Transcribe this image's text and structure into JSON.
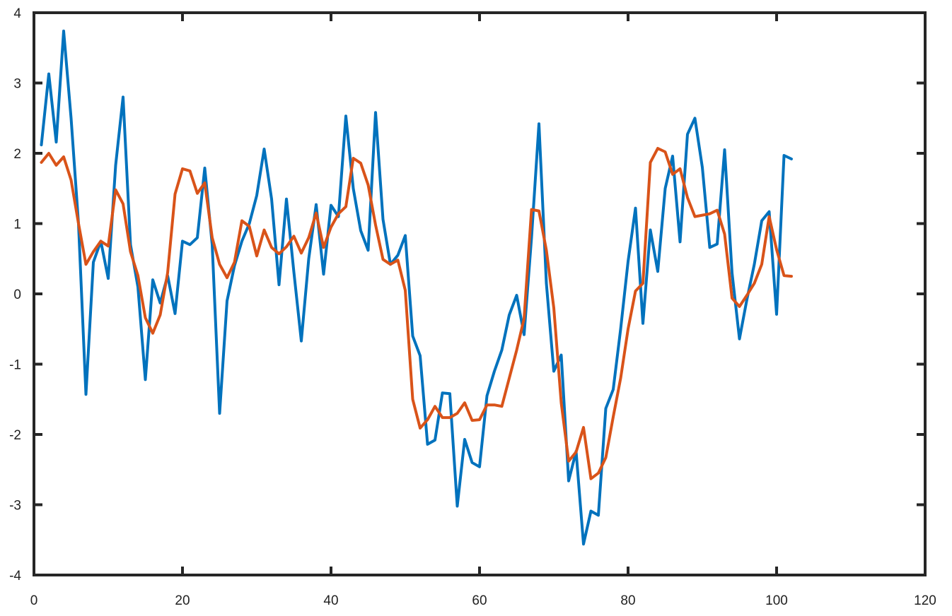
{
  "chart_data": {
    "type": "line",
    "title": "",
    "xlabel": "",
    "ylabel": "",
    "xlim": [
      0,
      120
    ],
    "ylim": [
      -4,
      4
    ],
    "xticks": [
      0,
      20,
      40,
      60,
      80,
      100,
      120
    ],
    "yticks": [
      -4,
      -3,
      -2,
      -1,
      0,
      1,
      2,
      3,
      4
    ],
    "grid": false,
    "legend": "none",
    "series": [
      {
        "color": "#0072BD",
        "x": [
          1,
          2,
          3,
          4,
          5,
          6,
          7,
          8,
          9,
          10,
          11,
          12,
          13,
          14,
          15,
          16,
          17,
          18,
          19,
          20,
          21,
          22,
          23,
          24,
          25,
          26,
          27,
          28,
          29,
          30,
          31,
          32,
          33,
          34,
          35,
          36,
          37,
          38,
          39,
          40,
          41,
          42,
          43,
          44,
          45,
          46,
          47,
          48,
          49,
          50,
          51,
          52,
          53,
          54,
          55,
          56,
          57,
          58,
          59,
          60,
          61,
          62,
          63,
          64,
          65,
          66,
          67,
          68,
          69,
          70,
          71,
          72,
          73,
          74,
          75,
          76,
          77,
          78,
          79,
          80,
          81,
          82,
          83,
          84,
          85,
          86,
          87,
          88,
          89,
          90,
          91,
          92,
          93,
          94,
          95,
          96,
          97,
          98,
          99,
          100,
          101,
          102
        ],
        "y": [
          2.12,
          3.13,
          2.16,
          3.74,
          2.5,
          1.0,
          -1.43,
          0.45,
          0.75,
          0.22,
          1.83,
          2.8,
          0.7,
          0.1,
          -1.22,
          0.2,
          -0.13,
          0.26,
          -0.28,
          0.75,
          0.7,
          0.8,
          1.79,
          0.7,
          -1.7,
          -0.1,
          0.4,
          0.75,
          1.0,
          1.4,
          2.06,
          1.35,
          0.13,
          1.35,
          0.31,
          -0.67,
          0.5,
          1.27,
          0.28,
          1.26,
          1.1,
          2.53,
          1.5,
          0.9,
          0.62,
          2.58,
          1.06,
          0.42,
          0.55,
          0.83,
          -0.6,
          -0.88,
          -2.14,
          -2.08,
          -1.41,
          -1.42,
          -3.02,
          -2.07,
          -2.4,
          -2.46,
          -1.45,
          -1.1,
          -0.8,
          -0.3,
          -0.02,
          -0.58,
          0.8,
          2.42,
          0.15,
          -1.1,
          -0.87,
          -2.66,
          -2.24,
          -3.56,
          -3.09,
          -3.15,
          -1.63,
          -1.36,
          -0.5,
          0.46,
          1.22,
          -0.42,
          0.91,
          0.32,
          1.5,
          1.96,
          0.74,
          2.27,
          2.5,
          1.8,
          0.66,
          0.71,
          2.05,
          0.3,
          -0.64,
          -0.08,
          0.42,
          1.04,
          1.17,
          -0.29,
          1.97,
          1.92
        ]
      },
      {
        "color": "#D95319",
        "x": [
          1,
          2,
          3,
          4,
          5,
          6,
          7,
          8,
          9,
          10,
          11,
          12,
          13,
          14,
          15,
          16,
          17,
          18,
          19,
          20,
          21,
          22,
          23,
          24,
          25,
          26,
          27,
          28,
          29,
          30,
          31,
          32,
          33,
          34,
          35,
          36,
          37,
          38,
          39,
          40,
          41,
          42,
          43,
          44,
          45,
          46,
          47,
          48,
          49,
          50,
          51,
          52,
          53,
          54,
          55,
          56,
          57,
          58,
          59,
          60,
          61,
          62,
          63,
          64,
          65,
          66,
          67,
          68,
          69,
          70,
          71,
          72,
          73,
          74,
          75,
          76,
          77,
          78,
          79,
          80,
          81,
          82,
          83,
          84,
          85,
          86,
          87,
          88,
          89,
          90,
          91,
          92,
          93,
          94,
          95,
          96,
          97,
          98,
          99,
          100,
          101,
          102
        ],
        "y": [
          1.87,
          2.0,
          1.83,
          1.95,
          1.62,
          1.0,
          0.42,
          0.6,
          0.75,
          0.68,
          1.48,
          1.28,
          0.6,
          0.26,
          -0.34,
          -0.56,
          -0.3,
          0.3,
          1.42,
          1.78,
          1.75,
          1.43,
          1.58,
          0.8,
          0.42,
          0.23,
          0.45,
          1.04,
          0.96,
          0.54,
          0.91,
          0.66,
          0.57,
          0.67,
          0.82,
          0.58,
          0.8,
          1.15,
          0.66,
          0.95,
          1.14,
          1.24,
          1.93,
          1.86,
          1.55,
          0.98,
          0.49,
          0.42,
          0.48,
          0.05,
          -1.5,
          -1.91,
          -1.79,
          -1.6,
          -1.76,
          -1.76,
          -1.7,
          -1.55,
          -1.8,
          -1.79,
          -1.58,
          -1.58,
          -1.6,
          -1.2,
          -0.8,
          -0.35,
          1.2,
          1.18,
          0.62,
          -0.2,
          -1.55,
          -2.38,
          -2.25,
          -1.9,
          -2.63,
          -2.55,
          -2.33,
          -1.75,
          -1.2,
          -0.5,
          0.04,
          0.15,
          1.87,
          2.07,
          2.02,
          1.7,
          1.78,
          1.37,
          1.1,
          1.12,
          1.14,
          1.19,
          0.85,
          -0.06,
          -0.18,
          -0.02,
          0.15,
          0.42,
          1.1,
          0.63,
          0.26,
          0.25
        ]
      }
    ]
  }
}
